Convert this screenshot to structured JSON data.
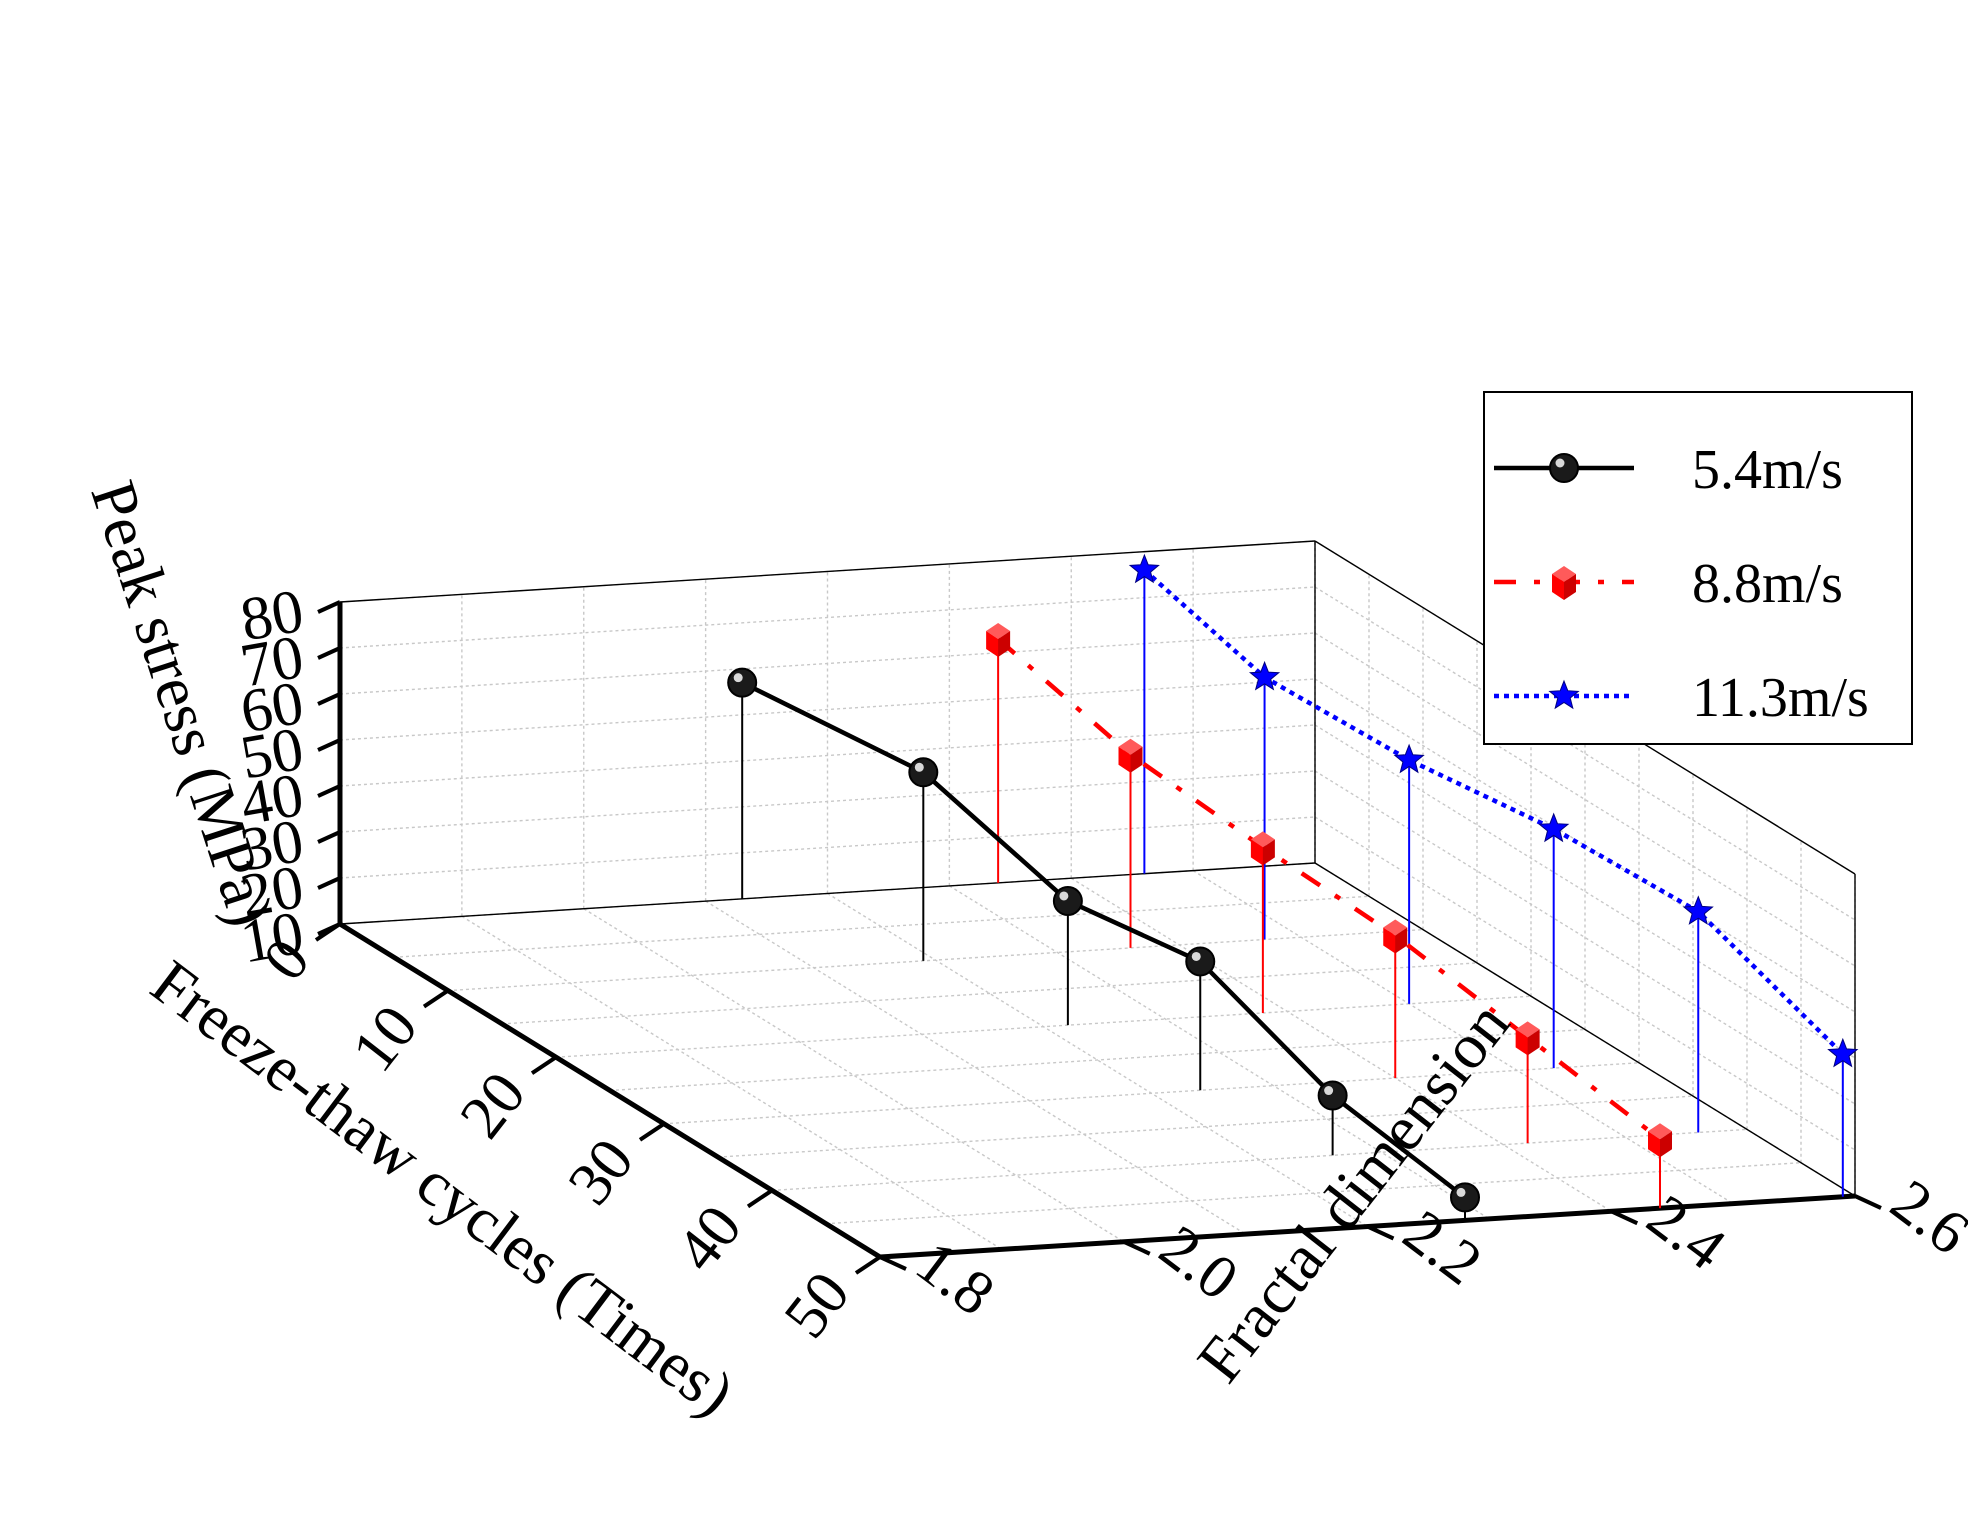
{
  "chart_data": {
    "type": "scatter",
    "subtype": "3d-line-with-drop-lines",
    "title": "",
    "axes": {
      "x": {
        "label": "Freeze-thaw cycles (Times)",
        "range": [
          0,
          50
        ],
        "ticks": [
          0,
          10,
          20,
          30,
          40,
          50
        ],
        "tick_labels": [
          "0",
          "10",
          "20",
          "30",
          "40",
          "50"
        ]
      },
      "y": {
        "label": "Fractal dimension",
        "range": [
          1.8,
          2.6
        ],
        "ticks": [
          1.8,
          2.0,
          2.2,
          2.4,
          2.6
        ],
        "tick_labels": [
          "1.8",
          "2.0",
          "2.2",
          "2.4",
          "2.6"
        ]
      },
      "z": {
        "label": "Peak stress (MPa)",
        "range": [
          10,
          80
        ],
        "ticks": [
          10,
          20,
          30,
          40,
          50,
          60,
          70,
          80
        ],
        "tick_labels": [
          "10",
          "20",
          "30",
          "40",
          "50",
          "60",
          "70",
          "80"
        ]
      }
    },
    "grid": true,
    "legend_position": "right",
    "series": [
      {
        "name": "5.4m/s",
        "color": "#000000",
        "marker": "sphere",
        "line_style": "solid",
        "x": [
          0,
          10,
          20,
          30,
          40,
          50
        ],
        "y": [
          2.13,
          2.19,
          2.22,
          2.24,
          2.26,
          2.28
        ],
        "z": [
          57,
          51,
          37,
          38,
          23,
          15
        ]
      },
      {
        "name": "8.8m/s",
        "color": "#ff0000",
        "marker": "cube",
        "line_style": "dash-dot",
        "x": [
          0,
          10,
          20,
          30,
          40,
          50
        ],
        "y": [
          2.34,
          2.36,
          2.38,
          2.4,
          2.42,
          2.44
        ],
        "z": [
          63,
          52,
          46,
          41,
          33,
          25
        ]
      },
      {
        "name": "11.3m/s",
        "color": "#0000ff",
        "marker": "star",
        "line_style": "dotted",
        "x": [
          0,
          10,
          20,
          30,
          40,
          50
        ],
        "y": [
          2.46,
          2.47,
          2.5,
          2.53,
          2.56,
          2.59
        ],
        "z": [
          76,
          67,
          63,
          62,
          58,
          41
        ]
      }
    ]
  }
}
